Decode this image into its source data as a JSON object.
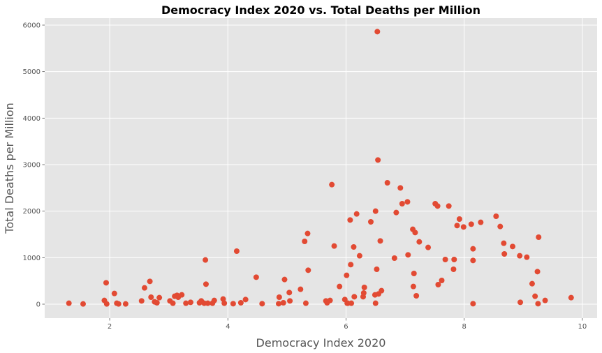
{
  "chart_data": {
    "type": "scatter",
    "title": "Democracy Index 2020 vs. Total Deaths per Million",
    "xlabel": "Democracy Index 2020",
    "ylabel": "Total Deaths per Million",
    "xlim": [
      0.9,
      10.25
    ],
    "ylim": [
      -300,
      6150
    ],
    "xticks": [
      2,
      4,
      6,
      8,
      10
    ],
    "yticks": [
      0,
      1000,
      2000,
      3000,
      4000,
      5000,
      6000
    ],
    "grid": true,
    "point_color": "#e24a33",
    "background_color": "#e5e5e5",
    "points": [
      [
        1.31,
        20
      ],
      [
        1.55,
        5
      ],
      [
        1.91,
        80
      ],
      [
        1.94,
        460
      ],
      [
        1.95,
        5
      ],
      [
        2.08,
        230
      ],
      [
        2.12,
        20
      ],
      [
        2.15,
        5
      ],
      [
        2.27,
        5
      ],
      [
        2.54,
        70
      ],
      [
        2.59,
        350
      ],
      [
        2.68,
        490
      ],
      [
        2.7,
        150
      ],
      [
        2.76,
        50
      ],
      [
        2.8,
        30
      ],
      [
        2.84,
        140
      ],
      [
        3.02,
        70
      ],
      [
        3.07,
        20
      ],
      [
        3.1,
        170
      ],
      [
        3.14,
        190
      ],
      [
        3.16,
        150
      ],
      [
        3.22,
        200
      ],
      [
        3.29,
        20
      ],
      [
        3.37,
        40
      ],
      [
        3.52,
        30
      ],
      [
        3.55,
        70
      ],
      [
        3.6,
        20
      ],
      [
        3.62,
        950
      ],
      [
        3.63,
        430
      ],
      [
        3.66,
        20
      ],
      [
        3.74,
        20
      ],
      [
        3.77,
        80
      ],
      [
        3.92,
        110
      ],
      [
        3.94,
        20
      ],
      [
        4.09,
        10
      ],
      [
        4.15,
        1140
      ],
      [
        4.22,
        30
      ],
      [
        4.3,
        100
      ],
      [
        4.48,
        580
      ],
      [
        4.58,
        10
      ],
      [
        4.86,
        10
      ],
      [
        4.87,
        150
      ],
      [
        4.94,
        30
      ],
      [
        4.96,
        530
      ],
      [
        5.04,
        250
      ],
      [
        5.05,
        70
      ],
      [
        5.23,
        320
      ],
      [
        5.3,
        1350
      ],
      [
        5.32,
        20
      ],
      [
        5.35,
        1520
      ],
      [
        5.36,
        730
      ],
      [
        5.66,
        70
      ],
      [
        5.68,
        30
      ],
      [
        5.73,
        80
      ],
      [
        5.76,
        2570
      ],
      [
        5.8,
        1250
      ],
      [
        5.89,
        380
      ],
      [
        5.98,
        100
      ],
      [
        6.01,
        620
      ],
      [
        6.02,
        20
      ],
      [
        6.03,
        20
      ],
      [
        6.07,
        1810
      ],
      [
        6.08,
        850
      ],
      [
        6.09,
        20
      ],
      [
        6.13,
        1230
      ],
      [
        6.14,
        160
      ],
      [
        6.18,
        1940
      ],
      [
        6.23,
        1040
      ],
      [
        6.29,
        160
      ],
      [
        6.3,
        240
      ],
      [
        6.31,
        360
      ],
      [
        6.42,
        1770
      ],
      [
        6.49,
        200
      ],
      [
        6.5,
        20
      ],
      [
        6.5,
        2000
      ],
      [
        6.52,
        750
      ],
      [
        6.53,
        5860
      ],
      [
        6.54,
        3100
      ],
      [
        6.55,
        220
      ],
      [
        6.58,
        1360
      ],
      [
        6.6,
        290
      ],
      [
        6.7,
        2610
      ],
      [
        6.82,
        990
      ],
      [
        6.85,
        1970
      ],
      [
        6.92,
        2500
      ],
      [
        6.95,
        2160
      ],
      [
        7.04,
        2200
      ],
      [
        7.05,
        1060
      ],
      [
        7.13,
        1610
      ],
      [
        7.14,
        380
      ],
      [
        7.15,
        660
      ],
      [
        7.17,
        1540
      ],
      [
        7.19,
        180
      ],
      [
        7.24,
        1340
      ],
      [
        7.39,
        1220
      ],
      [
        7.51,
        2160
      ],
      [
        7.55,
        2110
      ],
      [
        7.56,
        420
      ],
      [
        7.62,
        510
      ],
      [
        7.68,
        960
      ],
      [
        7.74,
        2110
      ],
      [
        7.82,
        750
      ],
      [
        7.83,
        960
      ],
      [
        7.88,
        1690
      ],
      [
        7.92,
        1830
      ],
      [
        7.99,
        1660
      ],
      [
        8.12,
        1720
      ],
      [
        8.15,
        1190
      ],
      [
        8.15,
        940
      ],
      [
        8.15,
        10
      ],
      [
        8.28,
        1760
      ],
      [
        8.54,
        1890
      ],
      [
        8.61,
        1670
      ],
      [
        8.67,
        1310
      ],
      [
        8.68,
        1080
      ],
      [
        8.82,
        1240
      ],
      [
        8.94,
        1040
      ],
      [
        8.95,
        40
      ],
      [
        9.06,
        1010
      ],
      [
        9.15,
        440
      ],
      [
        9.2,
        170
      ],
      [
        9.24,
        700
      ],
      [
        9.25,
        10
      ],
      [
        9.26,
        1440
      ],
      [
        9.37,
        80
      ],
      [
        9.81,
        140
      ]
    ]
  }
}
